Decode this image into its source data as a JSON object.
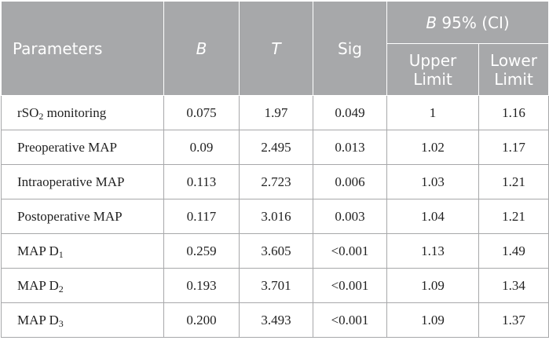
{
  "headers": {
    "parameters": "Parameters",
    "b": "B",
    "t": "T",
    "sig": "Sig",
    "ci_italic": "B",
    "ci_rest": " 95% (CI)",
    "upper_line1": "Upper",
    "upper_line2": "Limit",
    "lower_line1": "Lower",
    "lower_line2": "Limit"
  },
  "rows": [
    {
      "name_main": "rSO",
      "name_sub": "2",
      "name_after": " monitoring",
      "b": "0.075",
      "t": "1.97",
      "sig": "0.049",
      "upper": "1",
      "lower": "1.16"
    },
    {
      "name_main": "Preoperative MAP",
      "name_sub": "",
      "name_after": "",
      "b": "0.09",
      "t": "2.495",
      "sig": "0.013",
      "upper": "1.02",
      "lower": "1.17"
    },
    {
      "name_main": "Intraoperative MAP",
      "name_sub": "",
      "name_after": "",
      "b": "0.113",
      "t": "2.723",
      "sig": "0.006",
      "upper": "1.03",
      "lower": "1.21"
    },
    {
      "name_main": "Postoperative MAP",
      "name_sub": "",
      "name_after": "",
      "b": "0.117",
      "t": "3.016",
      "sig": "0.003",
      "upper": "1.04",
      "lower": "1.21"
    },
    {
      "name_main": "MAP D",
      "name_sub": "1",
      "name_after": "",
      "b": "0.259",
      "t": "3.605",
      "sig": "<0.001",
      "upper": "1.13",
      "lower": "1.49"
    },
    {
      "name_main": "MAP D",
      "name_sub": "2",
      "name_after": "",
      "b": "0.193",
      "t": "3.701",
      "sig": "<0.001",
      "upper": "1.09",
      "lower": "1.34"
    },
    {
      "name_main": "MAP D",
      "name_sub": "3",
      "name_after": "",
      "b": "0.200",
      "t": "3.493",
      "sig": "<0.001",
      "upper": "1.09",
      "lower": "1.37"
    }
  ]
}
